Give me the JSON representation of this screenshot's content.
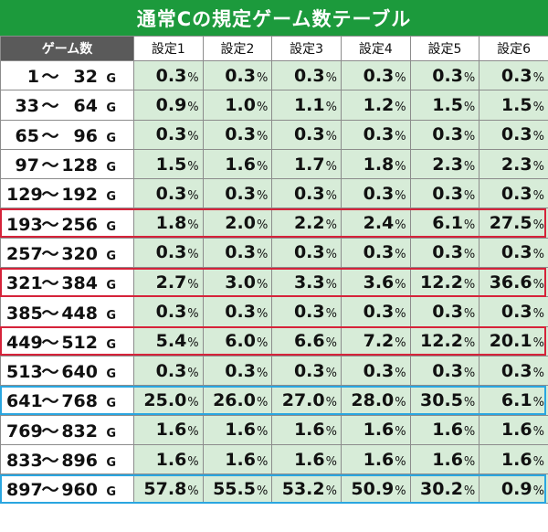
{
  "title": "通常Cの規定ゲーム数テーブル",
  "columns": [
    "ゲーム数",
    "設定1",
    "設定2",
    "設定3",
    "設定4",
    "設定5",
    "設定6"
  ],
  "unit_game": "G",
  "unit_pct": "%",
  "tilde": "～",
  "rows": [
    {
      "from": "1",
      "to": "32",
      "values": [
        "0.3",
        "0.3",
        "0.3",
        "0.3",
        "0.3",
        "0.3"
      ],
      "highlight": ""
    },
    {
      "from": "33",
      "to": "64",
      "values": [
        "0.9",
        "1.0",
        "1.1",
        "1.2",
        "1.5",
        "1.5"
      ],
      "highlight": ""
    },
    {
      "from": "65",
      "to": "96",
      "values": [
        "0.3",
        "0.3",
        "0.3",
        "0.3",
        "0.3",
        "0.3"
      ],
      "highlight": ""
    },
    {
      "from": "97",
      "to": "128",
      "values": [
        "1.5",
        "1.6",
        "1.7",
        "1.8",
        "2.3",
        "2.3"
      ],
      "highlight": ""
    },
    {
      "from": "129",
      "to": "192",
      "values": [
        "0.3",
        "0.3",
        "0.3",
        "0.3",
        "0.3",
        "0.3"
      ],
      "highlight": ""
    },
    {
      "from": "193",
      "to": "256",
      "values": [
        "1.8",
        "2.0",
        "2.2",
        "2.4",
        "6.1",
        "27.5"
      ],
      "highlight": "red"
    },
    {
      "from": "257",
      "to": "320",
      "values": [
        "0.3",
        "0.3",
        "0.3",
        "0.3",
        "0.3",
        "0.3"
      ],
      "highlight": ""
    },
    {
      "from": "321",
      "to": "384",
      "values": [
        "2.7",
        "3.0",
        "3.3",
        "3.6",
        "12.2",
        "36.6"
      ],
      "highlight": "red"
    },
    {
      "from": "385",
      "to": "448",
      "values": [
        "0.3",
        "0.3",
        "0.3",
        "0.3",
        "0.3",
        "0.3"
      ],
      "highlight": ""
    },
    {
      "from": "449",
      "to": "512",
      "values": [
        "5.4",
        "6.0",
        "6.6",
        "7.2",
        "12.2",
        "20.1"
      ],
      "highlight": "red"
    },
    {
      "from": "513",
      "to": "640",
      "values": [
        "0.3",
        "0.3",
        "0.3",
        "0.3",
        "0.3",
        "0.3"
      ],
      "highlight": ""
    },
    {
      "from": "641",
      "to": "768",
      "values": [
        "25.0",
        "26.0",
        "27.0",
        "28.0",
        "30.5",
        "6.1"
      ],
      "highlight": "blue"
    },
    {
      "from": "769",
      "to": "832",
      "values": [
        "1.6",
        "1.6",
        "1.6",
        "1.6",
        "1.6",
        "1.6"
      ],
      "highlight": ""
    },
    {
      "from": "833",
      "to": "896",
      "values": [
        "1.6",
        "1.6",
        "1.6",
        "1.6",
        "1.6",
        "1.6"
      ],
      "highlight": ""
    },
    {
      "from": "897",
      "to": "960",
      "values": [
        "57.8",
        "55.5",
        "53.2",
        "50.9",
        "30.2",
        "0.9"
      ],
      "highlight": "blue"
    }
  ],
  "colors": {
    "title_bg": "#1c9a3c",
    "header_first_bg": "#5a5a5a",
    "value_bg": "#d7ecd8",
    "highlight_red": "#d6233a",
    "highlight_blue": "#2aa6e0"
  }
}
